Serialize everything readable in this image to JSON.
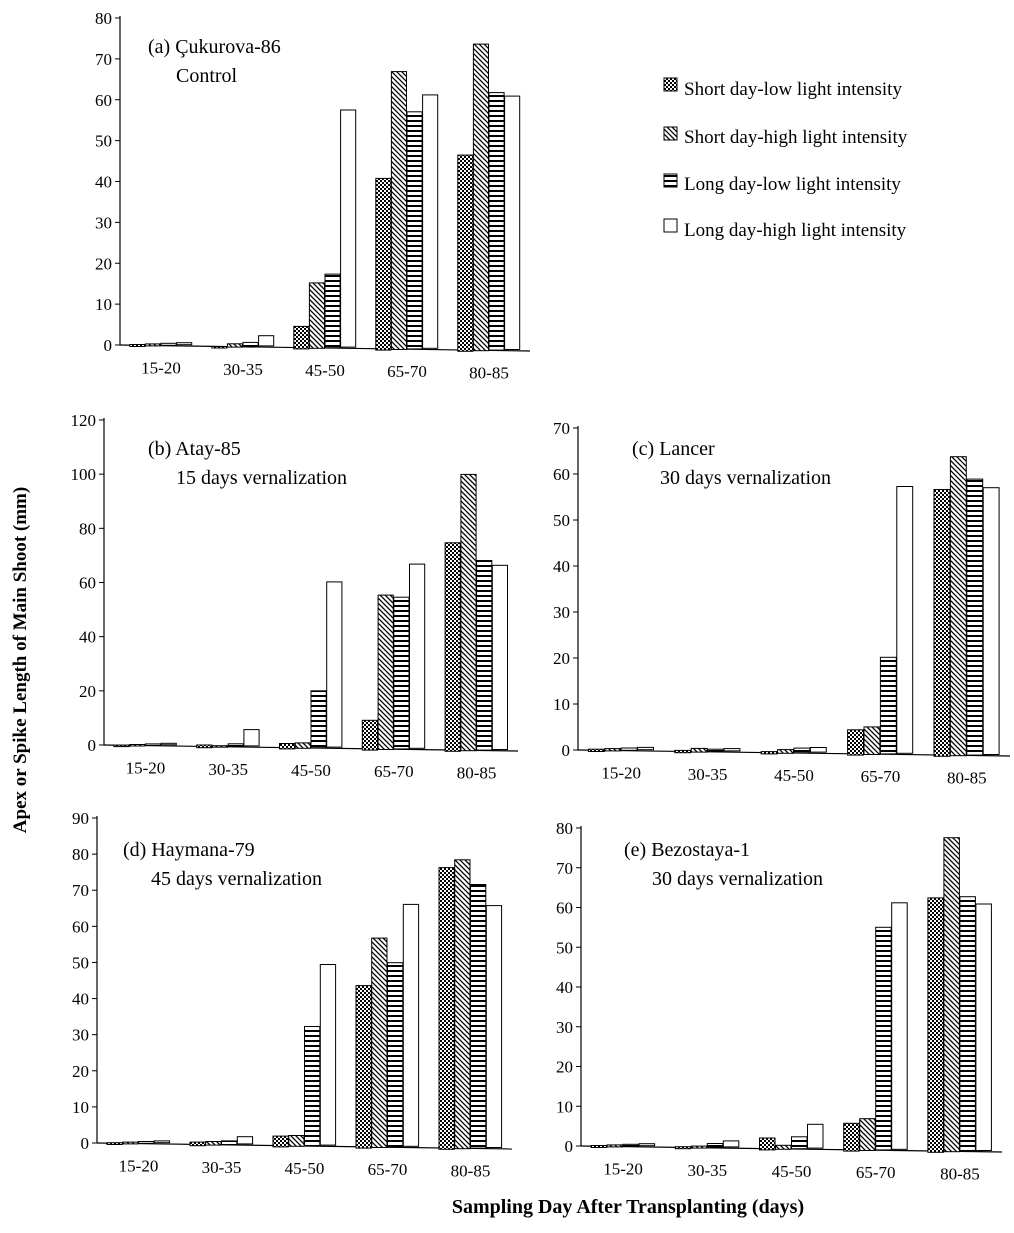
{
  "figure": {
    "ylabel": "Apex or Spike Length of Main Shoot (mm)",
    "xlabel": "Sampling Day After Transplanting (days)"
  },
  "legend": [
    {
      "label": "Short day-low light intensity",
      "pattern": "checker"
    },
    {
      "label": "Short day-high light intensity",
      "pattern": "diag"
    },
    {
      "label": "Long day-low light intensity",
      "pattern": "horiz"
    },
    {
      "label": "Long day-high light intensity",
      "pattern": "blank"
    }
  ],
  "chart_data": [
    {
      "type": "bar",
      "panel": "a",
      "title": "(a) Çukurova-86",
      "subtitle": "Control",
      "categories": [
        "15-20",
        "30-35",
        "45-50",
        "65-70",
        "80-85"
      ],
      "ylim": [
        0,
        80
      ],
      "yticks": [
        0,
        10,
        20,
        30,
        40,
        50,
        60,
        70,
        80
      ],
      "series": [
        {
          "name": "Short day-low light intensity",
          "values": [
            0.5,
            0.3,
            5.5,
            42,
            48
          ]
        },
        {
          "name": "Short day-high light intensity",
          "values": [
            0.5,
            0.8,
            16,
            68,
            75
          ]
        },
        {
          "name": "Long day-low light intensity",
          "values": [
            0.5,
            1,
            18,
            58,
            63
          ]
        },
        {
          "name": "Long day-high light intensity",
          "values": [
            0.5,
            2.5,
            58,
            62,
            62
          ]
        }
      ]
    },
    {
      "type": "bar",
      "panel": "b",
      "title": "(b) Atay-85",
      "subtitle": "15 days vernalization",
      "categories": [
        "15-20",
        "30-35",
        "45-50",
        "65-70",
        "80-85"
      ],
      "ylim": [
        0,
        120
      ],
      "yticks": [
        0,
        20,
        40,
        60,
        80,
        100,
        120
      ],
      "series": [
        {
          "name": "Short day-low light intensity",
          "values": [
            0.5,
            1,
            2,
            11,
            77
          ]
        },
        {
          "name": "Short day-high light intensity",
          "values": [
            0.5,
            0.5,
            2,
            57,
            102
          ]
        },
        {
          "name": "Long day-low light intensity",
          "values": [
            0.5,
            1,
            21,
            56,
            70
          ]
        },
        {
          "name": "Long day-high light intensity",
          "values": [
            0.5,
            6,
            61,
            68,
            68
          ]
        }
      ]
    },
    {
      "type": "bar",
      "panel": "c",
      "title": "(c) Lancer",
      "subtitle": "30 days vernalization",
      "categories": [
        "15-20",
        "30-35",
        "45-50",
        "65-70",
        "80-85"
      ],
      "ylim": [
        0,
        70
      ],
      "yticks": [
        0,
        10,
        20,
        30,
        40,
        50,
        60,
        70
      ],
      "series": [
        {
          "name": "Short day-low light intensity",
          "values": [
            0.5,
            0.5,
            0.5,
            5.5,
            58
          ]
        },
        {
          "name": "Short day-high light intensity",
          "values": [
            0.5,
            0.8,
            0.8,
            6,
            65
          ]
        },
        {
          "name": "Long day-low light intensity",
          "values": [
            0.5,
            0.5,
            1,
            21,
            60
          ]
        },
        {
          "name": "Long day-high light intensity",
          "values": [
            0.5,
            0.5,
            1,
            58,
            58
          ]
        }
      ]
    },
    {
      "type": "bar",
      "panel": "d",
      "title": "(d) Haymana-79",
      "subtitle": "45 days vernalization",
      "categories": [
        "15-20",
        "30-35",
        "45-50",
        "65-70",
        "80-85"
      ],
      "ylim": [
        0,
        90
      ],
      "yticks": [
        0,
        10,
        20,
        30,
        40,
        50,
        60,
        70,
        80,
        90
      ],
      "series": [
        {
          "name": "Short day-low light intensity",
          "values": [
            0.5,
            1,
            3,
            45,
            78
          ]
        },
        {
          "name": "Short day-high light intensity",
          "values": [
            0.5,
            1,
            3,
            58,
            80
          ]
        },
        {
          "name": "Long day-low light intensity",
          "values": [
            0.5,
            1,
            33,
            51,
            73
          ]
        },
        {
          "name": "Long day-high light intensity",
          "values": [
            0.5,
            2,
            50,
            67,
            67
          ]
        }
      ]
    },
    {
      "type": "bar",
      "panel": "e",
      "title": "(e) Bezostaya-1",
      "subtitle": "30 days vernalization",
      "categories": [
        "15-20",
        "30-35",
        "45-50",
        "65-70",
        "80-85"
      ],
      "ylim": [
        0,
        80
      ],
      "yticks": [
        0,
        10,
        20,
        30,
        40,
        50,
        60,
        70,
        80
      ],
      "series": [
        {
          "name": "Short day-low light intensity",
          "values": [
            0.5,
            0.5,
            3,
            7,
            64
          ]
        },
        {
          "name": "Short day-high light intensity",
          "values": [
            0.5,
            0.5,
            1,
            8,
            79
          ]
        },
        {
          "name": "Long day-low light intensity",
          "values": [
            0.5,
            1,
            3,
            56,
            64
          ]
        },
        {
          "name": "Long day-high light intensity",
          "values": [
            0.5,
            1.5,
            6,
            62,
            62
          ]
        }
      ]
    }
  ]
}
